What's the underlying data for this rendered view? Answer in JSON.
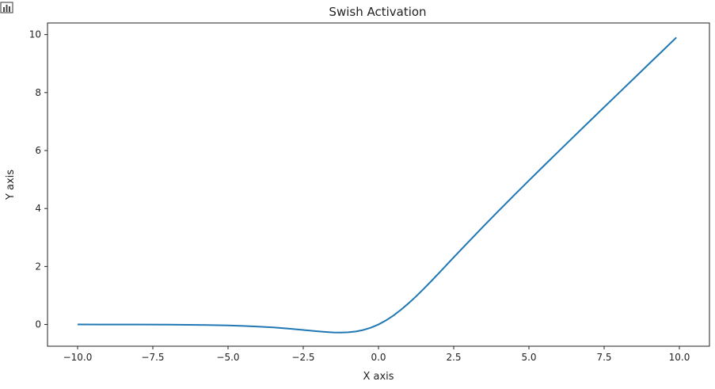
{
  "chart_data": {
    "type": "line",
    "title": "Swish Activation",
    "xlabel": "X axis",
    "ylabel": "Y axis",
    "xlim": [
      -11.0,
      11.0
    ],
    "ylim": [
      -0.75,
      10.4
    ],
    "x_ticks": [
      -10.0,
      -7.5,
      -5.0,
      -2.5,
      0.0,
      2.5,
      5.0,
      7.5,
      10.0
    ],
    "x_tick_labels": [
      "−10.0",
      "−7.5",
      "−5.0",
      "−2.5",
      "0.0",
      "2.5",
      "5.0",
      "7.5",
      "10.0"
    ],
    "y_ticks": [
      0,
      2,
      4,
      6,
      8,
      10
    ],
    "y_tick_labels": [
      "0",
      "2",
      "4",
      "6",
      "8",
      "10"
    ],
    "grid": false,
    "series": [
      {
        "color": "#1f77b4",
        "x": [
          -10.0,
          -9.0,
          -8.0,
          -7.0,
          -6.0,
          -5.0,
          -4.5,
          -4.0,
          -3.5,
          -3.0,
          -2.5,
          -2.0,
          -1.75,
          -1.5,
          -1.25,
          -1.0,
          -0.75,
          -0.5,
          -0.25,
          0.0,
          0.25,
          0.5,
          0.75,
          1.0,
          1.25,
          1.5,
          1.75,
          2.0,
          2.5,
          3.0,
          3.5,
          4.0,
          4.5,
          5.0,
          5.5,
          6.0,
          6.5,
          7.0,
          7.5,
          8.0,
          8.5,
          9.0,
          9.5,
          9.9
        ],
        "y": [
          0.0,
          -0.001,
          -0.003,
          -0.006,
          -0.015,
          -0.034,
          -0.05,
          -0.072,
          -0.102,
          -0.142,
          -0.189,
          -0.238,
          -0.258,
          -0.274,
          -0.278,
          -0.269,
          -0.24,
          -0.189,
          -0.11,
          0.0,
          0.141,
          0.311,
          0.51,
          0.731,
          0.97,
          1.226,
          1.491,
          1.762,
          2.317,
          2.858,
          3.398,
          3.928,
          4.45,
          4.967,
          5.477,
          5.985,
          6.49,
          6.994,
          7.496,
          7.997,
          8.498,
          8.999,
          9.499,
          9.899
        ]
      }
    ]
  }
}
